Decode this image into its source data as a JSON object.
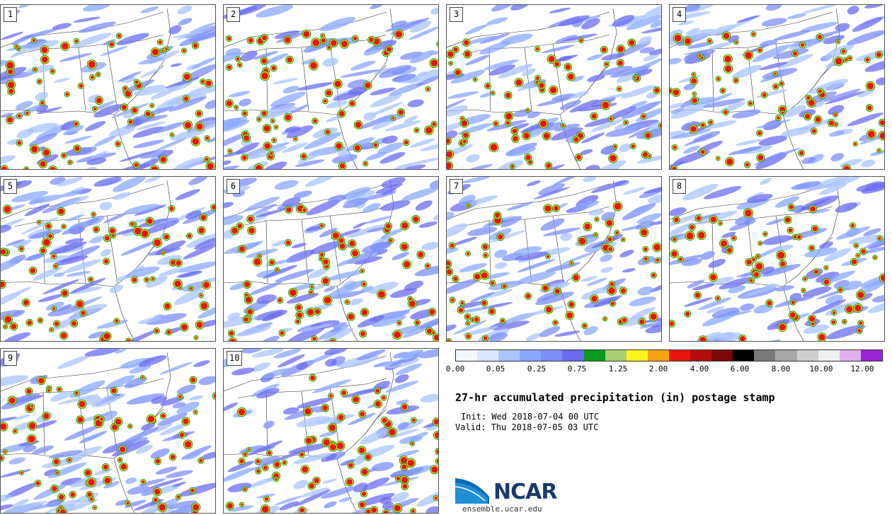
{
  "panels": [
    {
      "label": "1"
    },
    {
      "label": "2"
    },
    {
      "label": "3"
    },
    {
      "label": "4"
    },
    {
      "label": "5"
    },
    {
      "label": "6"
    },
    {
      "label": "7"
    },
    {
      "label": "8"
    },
    {
      "label": "9"
    },
    {
      "label": "10"
    }
  ],
  "colorbar": {
    "colors": [
      "#f4f8ff",
      "#dce8ff",
      "#a9c4ff",
      "#8aa8ff",
      "#7c8ff8",
      "#6b6cf0",
      "#0a9a1e",
      "#a8cf72",
      "#fff21e",
      "#f6a40e",
      "#e8140e",
      "#b50d0d",
      "#7a0a0a",
      "#000000",
      "#7a7a7a",
      "#a8a8a8",
      "#cfcfcf",
      "#efefef",
      "#e0b0ee",
      "#9a22d2"
    ],
    "ticks": [
      "0.00",
      "0.05",
      "0.25",
      "0.75",
      "1.25",
      "2.00",
      "4.00",
      "6.00",
      "8.00",
      "10.00",
      "12.00"
    ]
  },
  "title": "27-hr accumulated precipitation (in) postage stamp",
  "init": "Init: Wed 2018-07-04 00 UTC",
  "valid": "Valid: Thu 2018-07-05 03 UTC",
  "logo": {
    "text": "NCAR",
    "site": "ensemble.ucar.edu"
  }
}
